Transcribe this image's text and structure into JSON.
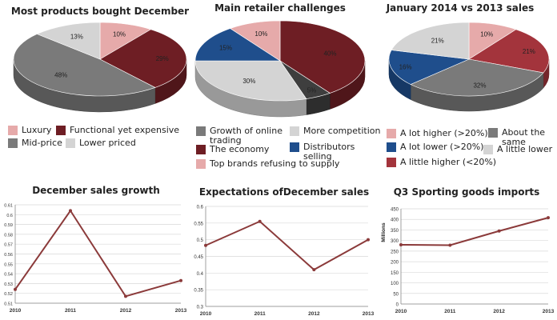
{
  "colors": {
    "pink": "#e6aaaa",
    "maroon": "#6e1e24",
    "maroon_side": "#4a1216",
    "gray": "#7a7a7a",
    "gray_side": "#555555",
    "light": "#d4d4d4",
    "light_side": "#a9a9a9",
    "blue": "#1f4e8c",
    "blue_side": "#163a68",
    "red": "#a3343c",
    "red_side": "#75232a",
    "darkgray": "#3e3e3e",
    "darkgray_side": "#2a2a2a",
    "line": "#8b3a3a"
  },
  "chart_data": [
    {
      "type": "pie",
      "title": "Most products bought December",
      "slices": [
        {
          "label": "Luxury",
          "value": 10,
          "text": "10%",
          "color": "#e6aaaa"
        },
        {
          "label": "Functional yet expensive",
          "value": 29,
          "text": "29%",
          "color": "#6e1e24"
        },
        {
          "label": "Mid-price",
          "value": 48,
          "text": "48%",
          "color": "#7a7a7a"
        },
        {
          "label": "Lower priced",
          "value": 13,
          "text": "13%",
          "color": "#d4d4d4"
        }
      ]
    },
    {
      "type": "pie",
      "title": "Main retailer challenges",
      "slices": [
        {
          "label": "The economy",
          "value": 40,
          "text": "40%",
          "color": "#6e1e24"
        },
        {
          "label": "Growth of online trading",
          "value": 5,
          "text": "5%",
          "color": "#3e3e3e"
        },
        {
          "label": "More competition",
          "value": 30,
          "text": "30%",
          "color": "#d4d4d4"
        },
        {
          "label": "Distributors selling",
          "value": 15,
          "text": "15%",
          "color": "#1f4e8c"
        },
        {
          "label": "Top brands refusing to supply",
          "value": 10,
          "text": "10%",
          "color": "#e6aaaa"
        }
      ]
    },
    {
      "type": "pie",
      "title": "January 2014 vs 2013 sales",
      "slices": [
        {
          "label": "A lot higher (>20%)",
          "value": 10,
          "text": "10%",
          "color": "#e6aaaa"
        },
        {
          "label": "A little higher (<20%)",
          "value": 21,
          "text": "21%",
          "color": "#a3343c"
        },
        {
          "label": "About the same",
          "value": 32,
          "text": "32%",
          "color": "#7a7a7a"
        },
        {
          "label": "A lot lower (>20%)",
          "value": 16,
          "text": "16%",
          "color": "#1f4e8c"
        },
        {
          "label": "A little lower",
          "value": 21,
          "text": "21%",
          "color": "#d4d4d4"
        }
      ]
    },
    {
      "type": "line",
      "title": "December sales growth",
      "x": [
        "2010",
        "2011",
        "2012",
        "2013"
      ],
      "values": [
        0.524,
        0.604,
        0.517,
        0.533
      ],
      "ylim": [
        0.51,
        0.61
      ],
      "yticks": [
        "0.51",
        "0.52",
        "0.53",
        "0.54",
        "0.55",
        "0.56",
        "0.57",
        "0.58",
        "0.59",
        "0.6",
        "0.61"
      ],
      "ylabel": "",
      "grid": true
    },
    {
      "type": "line",
      "title": "Expectations ofDecember sales",
      "x": [
        "2010",
        "2011",
        "2012",
        "2013"
      ],
      "values": [
        0.483,
        0.555,
        0.41,
        0.5
      ],
      "ylim": [
        0.3,
        0.6
      ],
      "yticks": [
        "0.3",
        "0.35",
        "0.4",
        "0.45",
        "0.5",
        "0.55",
        "0.6"
      ],
      "ylabel": "",
      "grid": true
    },
    {
      "type": "line",
      "title": "Q3 Sporting goods imports",
      "x": [
        "2010",
        "2011",
        "2012",
        "2013"
      ],
      "values": [
        280,
        278,
        345,
        408
      ],
      "ylim": [
        0,
        450
      ],
      "yticks": [
        "0",
        "50",
        "100",
        "150",
        "200",
        "250",
        "300",
        "350",
        "400",
        "450"
      ],
      "ylabel": "Millions",
      "grid": true
    }
  ],
  "legends": {
    "pie1": [
      {
        "label": "Luxury",
        "color": "#e6aaaa"
      },
      {
        "label": "Functional yet expensive",
        "color": "#6e1e24"
      },
      {
        "label": "Mid-price",
        "color": "#7a7a7a"
      },
      {
        "label": "Lower priced",
        "color": "#d4d4d4"
      }
    ],
    "pie2": [
      {
        "label": "Growth of online",
        "label2": "trading",
        "color": "#7a7a7a"
      },
      {
        "label": "More competition",
        "color": "#d4d4d4"
      },
      {
        "label": "The economy",
        "color": "#6e1e24"
      },
      {
        "label": "Distributors",
        "label2": "selling",
        "color": "#1f4e8c"
      },
      {
        "label": "Top brands refusing to supply",
        "color": "#e6aaaa"
      }
    ],
    "pie3": [
      {
        "label": "A lot higher (>20%)",
        "color": "#e6aaaa"
      },
      {
        "label": "About the",
        "label2": "same",
        "color": "#7a7a7a"
      },
      {
        "label": "A lot lower (>20%)",
        "color": "#1f4e8c"
      },
      {
        "label": "A little lower",
        "color": "#d4d4d4"
      },
      {
        "label": "A little higher (<20%)",
        "color": "#a3343c"
      }
    ]
  }
}
